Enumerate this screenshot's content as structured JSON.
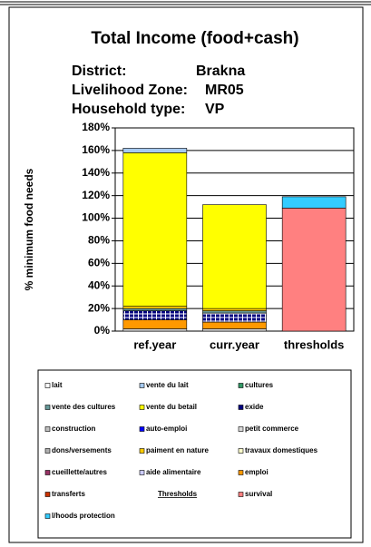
{
  "chart_data": {
    "type": "stacked_bar",
    "title": "Total Income (food+cash)",
    "info": [
      {
        "label": "District:",
        "value": "Brakna"
      },
      {
        "label": "Livelihood Zone:",
        "value": "MR05"
      },
      {
        "label": "Household type:",
        "value": "VP"
      }
    ],
    "y_label": "% minimum food needs",
    "categories": [
      "ref.year",
      "curr.year",
      "thresholds"
    ],
    "ylim": [
      0,
      180
    ],
    "yticks": [
      {
        "value": 0,
        "label": "0%"
      },
      {
        "value": 20,
        "label": "20%"
      },
      {
        "value": 40,
        "label": "40%"
      },
      {
        "value": 60,
        "label": "60%"
      },
      {
        "value": 80,
        "label": "80%"
      },
      {
        "value": 100,
        "label": "100%"
      },
      {
        "value": 120,
        "label": "120%"
      },
      {
        "value": 140,
        "label": "140%"
      },
      {
        "value": 160,
        "label": "160%"
      },
      {
        "value": 180,
        "label": "180%"
      }
    ],
    "grid": true,
    "legend_heading": "Thresholds",
    "series": [
      {
        "name": "lait",
        "color": "#ffffff",
        "values": [
          0,
          0,
          0
        ]
      },
      {
        "name": "vente du lait",
        "color": "#a6caf0",
        "values": [
          4,
          0,
          0
        ]
      },
      {
        "name": "cultures",
        "color": "#339966",
        "values": [
          0,
          0,
          0
        ]
      },
      {
        "name": "vente des cultures",
        "color": "#669999",
        "values": [
          2,
          2,
          0
        ]
      },
      {
        "name": "vente du betail",
        "color": "#ffff00",
        "values": [
          136,
          92,
          0
        ]
      },
      {
        "name": "exide",
        "color": "#000080",
        "values": [
          8,
          8,
          0
        ]
      },
      {
        "name": "construction",
        "color": "#c0c0c0",
        "values": [
          0,
          0,
          0
        ]
      },
      {
        "name": "auto-emploi",
        "color": "#0000ff",
        "values": [
          0,
          0,
          0
        ]
      },
      {
        "name": "petit commerce",
        "color": "#d9d9d9",
        "values": [
          2,
          2,
          0
        ]
      },
      {
        "name": "dons/versements",
        "color": "#b0b0b0",
        "values": [
          0,
          0,
          0
        ]
      },
      {
        "name": "paiment en nature",
        "color": "#ffcc00",
        "values": [
          2,
          2,
          0
        ]
      },
      {
        "name": "travaux domestiques",
        "color": "#ffffcc",
        "values": [
          0,
          0,
          0
        ]
      },
      {
        "name": "cueillette/autres",
        "color": "#993366",
        "values": [
          0,
          0,
          0
        ]
      },
      {
        "name": "aide alimentaire",
        "color": "#ccccff",
        "values": [
          0,
          0,
          0
        ]
      },
      {
        "name": "emploi",
        "color": "#ff9900",
        "values": [
          8,
          6,
          0
        ]
      },
      {
        "name": "transferts",
        "color": "#cc3300",
        "values": [
          0,
          0,
          0
        ]
      },
      {
        "name": "survival",
        "color": "#ff8080",
        "values": [
          0,
          0,
          109
        ]
      },
      {
        "name": "l/hoods protection",
        "color": "#33ccff",
        "values": [
          0,
          0,
          10
        ]
      }
    ]
  }
}
